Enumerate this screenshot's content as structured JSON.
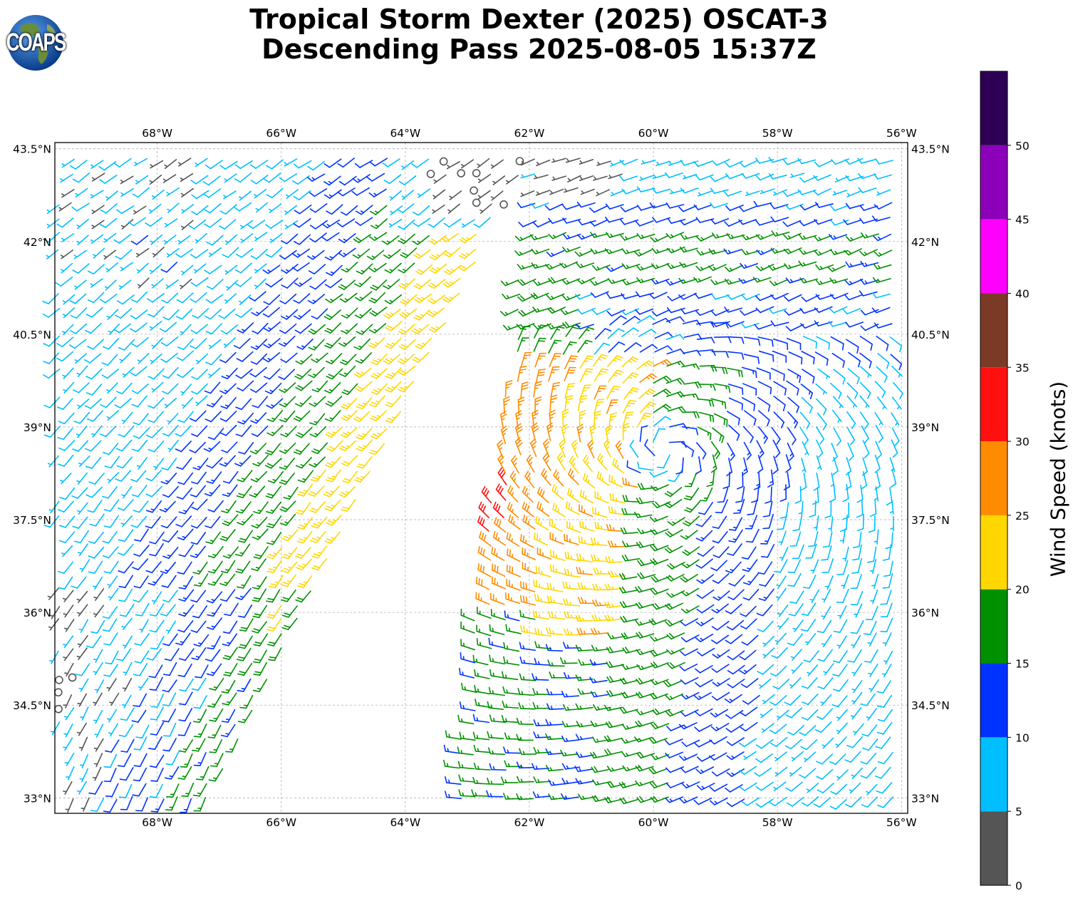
{
  "title": {
    "line1": "Tropical Storm Dexter (2025) OSCAT-3",
    "line2": "Descending Pass 2025-08-05 15:37Z"
  },
  "logo": {
    "text": "COAPS",
    "icon": "globe-logo-icon"
  },
  "map": {
    "lon_range": [
      -69.65,
      -55.9
    ],
    "lat_range": [
      32.75,
      43.6
    ],
    "lon_ticks": [
      -68,
      -66,
      -64,
      -62,
      -60,
      -58,
      -56
    ],
    "lon_tick_labels": [
      "68°W",
      "66°W",
      "64°W",
      "62°W",
      "60°W",
      "58°W",
      "56°W"
    ],
    "lat_ticks": [
      43.5,
      42,
      40.5,
      39,
      37.5,
      36,
      34.5,
      33
    ],
    "lat_tick_labels": [
      "43.5°N",
      "42°N",
      "40.5°N",
      "39°N",
      "37.5°N",
      "36°N",
      "34.5°N",
      "33°N"
    ],
    "grid": true,
    "symbol": "wind-barbs",
    "swath_west": {
      "description_hidden": true,
      "left_edge_lon_at_lat": [
        [
          -69.65,
          33
        ],
        [
          -69.65,
          43.6
        ]
      ],
      "right_edge": [
        [
          -66.6,
          34.0
        ],
        [
          -61.9,
          43.6
        ]
      ]
    },
    "swath_east": {
      "left_edge": [
        [
          -63.3,
          32.75
        ],
        [
          -61.9,
          43.6
        ]
      ],
      "right_edge_lon": -55.9
    }
  },
  "colorbar": {
    "label": "Wind Speed (knots)",
    "range": [
      0,
      55
    ],
    "bounds": [
      0,
      5,
      10,
      15,
      20,
      25,
      30,
      35,
      40,
      45,
      50,
      55
    ],
    "tick_values": [
      0,
      5,
      10,
      15,
      20,
      25,
      30,
      35,
      40,
      45,
      50
    ],
    "tick_labels": [
      "0",
      "5",
      "10",
      "15",
      "20",
      "25",
      "30",
      "35",
      "40",
      "45",
      "50"
    ],
    "colors": [
      "#555555",
      "#00bfff",
      "#0033ff",
      "#009100",
      "#ffd700",
      "#ff8c00",
      "#ff1010",
      "#7b3a26",
      "#ff00ff",
      "#8b00b8",
      "#2d0055"
    ]
  }
}
